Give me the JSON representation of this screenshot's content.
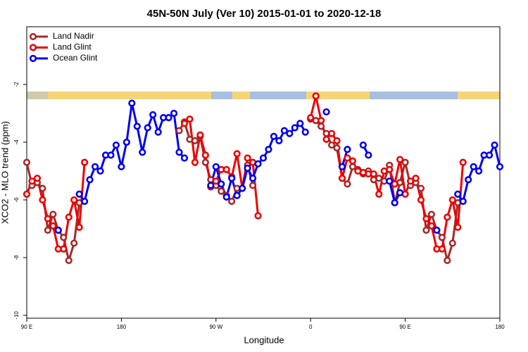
{
  "chart_data": {
    "type": "line",
    "title": "45N-50N July (Ver 10)   2015-01-01 to 2020-12-18",
    "x_label": "Longitude",
    "y_label": "XCO2 - MLO trend (ppm)",
    "x": [
      90,
      95,
      100,
      105,
      110,
      115,
      120,
      125,
      130,
      135,
      140,
      145,
      150,
      155,
      160,
      165,
      170,
      175,
      180,
      185,
      190,
      195,
      200,
      205,
      210,
      215,
      220,
      225,
      230,
      235,
      240,
      245,
      250,
      255,
      260,
      265,
      270,
      275,
      280,
      285,
      290,
      295,
      300,
      305,
      310,
      315,
      320,
      325,
      330,
      335,
      340,
      345,
      350,
      355,
      360,
      365,
      370,
      375,
      380,
      385,
      390,
      395,
      400,
      405,
      410,
      415,
      420,
      425,
      430,
      435,
      440,
      445,
      450,
      455,
      460,
      465,
      470,
      475,
      480,
      485,
      490,
      495,
      500,
      505,
      510,
      515,
      520,
      525,
      530,
      535,
      540
    ],
    "xlim": [
      90,
      540
    ],
    "xticks": [
      {
        "value": 90,
        "label": "90 E"
      },
      {
        "value": 180,
        "label": "180"
      },
      {
        "value": 270,
        "label": "90 W"
      },
      {
        "value": 360,
        "label": "0"
      },
      {
        "value": 450,
        "label": "90 E"
      },
      {
        "value": 540,
        "label": "180"
      }
    ],
    "ylim": [
      -10.1,
      0
    ],
    "yticks": [
      -10,
      -8,
      -6,
      -4,
      -2
    ],
    "legend": "top-left",
    "series": [
      {
        "name": "Land Nadir",
        "color": "#a52a2a",
        "values": [
          -4.7,
          -5.5,
          -5.4,
          -5.6,
          -7.05,
          -6.5,
          -7.05,
          -7.3,
          -8.1,
          -7.5,
          -6.1,
          null,
          null,
          null,
          null,
          null,
          null,
          null,
          null,
          null,
          null,
          null,
          null,
          null,
          null,
          null,
          null,
          null,
          null,
          -3.6,
          -3.3,
          -3.9,
          -3.95,
          -3.8,
          -4.7,
          -5.3,
          -5.5,
          -5.7,
          -5.85,
          -6.05,
          -5.6,
          -5.6,
          -4.8,
          -5.5,
          null,
          null,
          null,
          null,
          null,
          null,
          null,
          null,
          null,
          null,
          -3.2,
          -3.25,
          -3.45,
          -3.7,
          -4.1,
          -4.2,
          -5.25,
          -5.45,
          -4.85,
          -4.95,
          -5.1,
          -5.0,
          -5.3,
          -5.25,
          -5.35,
          -4.8,
          -6.1,
          -5.4,
          -4.7,
          -5.5,
          -5.4,
          -5.6,
          -7.05,
          -6.5,
          -7.05,
          -7.3,
          -8.1,
          -7.5,
          -6.1,
          null,
          null,
          null,
          null,
          null,
          null,
          null,
          null
        ]
      },
      {
        "name": "Land Glint",
        "color": "#ee0000",
        "values": [
          -5.8,
          -5.35,
          -5.25,
          -6.0,
          -6.65,
          -6.9,
          -7.7,
          -7.7,
          -6.6,
          -6.0,
          -6.95,
          -4.7,
          null,
          null,
          null,
          null,
          null,
          null,
          null,
          null,
          null,
          null,
          null,
          null,
          null,
          null,
          null,
          null,
          null,
          null,
          -3.35,
          -3.2,
          -4.7,
          -3.75,
          -4.45,
          -5.55,
          -5.35,
          -4.95,
          -4.95,
          -5.2,
          -4.4,
          -5.6,
          -4.55,
          -4.7,
          -6.55,
          null,
          null,
          null,
          null,
          null,
          null,
          null,
          null,
          null,
          -3.15,
          -2.4,
          -3.25,
          -3.9,
          -3.7,
          -3.95,
          -5.25,
          -4.55,
          -4.65,
          -5.0,
          -5.05,
          -5.1,
          -5.1,
          -5.8,
          -5.0,
          -4.95,
          -5.45,
          -4.6,
          -5.8,
          -5.35,
          -5.25,
          -6.0,
          -6.65,
          -6.9,
          -7.7,
          -7.7,
          -6.6,
          -6.0,
          -6.95,
          -4.7,
          null,
          null,
          null,
          null,
          null,
          null,
          null
        ]
      },
      {
        "name": "Ocean Glint",
        "color": "#0000ee",
        "values": [
          null,
          null,
          null,
          null,
          null,
          null,
          -7.05,
          null,
          null,
          null,
          -5.8,
          -6.05,
          -5.3,
          -4.85,
          -5.0,
          -4.45,
          -4.45,
          -4.1,
          -4.85,
          -4.0,
          -2.65,
          -3.45,
          -4.35,
          -3.5,
          -3.05,
          -3.65,
          -3.15,
          -3.15,
          -3.0,
          -4.35,
          -4.55,
          null,
          null,
          null,
          null,
          -5.5,
          -4.85,
          -5.45,
          -5.9,
          -5.25,
          -5.85,
          -5.6,
          -4.9,
          -5.25,
          -4.75,
          -4.55,
          -4.25,
          -3.8,
          -3.95,
          -3.6,
          -3.7,
          -3.5,
          -3.35,
          -3.65,
          null,
          null,
          null,
          -2.95,
          null,
          null,
          -4.85,
          -4.25,
          null,
          null,
          -4.1,
          -4.45,
          null,
          null,
          null,
          -5.35,
          -6.1,
          -5.75,
          null,
          null,
          null,
          null,
          null,
          null,
          -7.05,
          null,
          null,
          null,
          -5.8,
          -6.05,
          -5.3,
          -4.85,
          -5.0,
          -4.45,
          -4.45,
          -4.1,
          -4.85
        ]
      }
    ]
  }
}
